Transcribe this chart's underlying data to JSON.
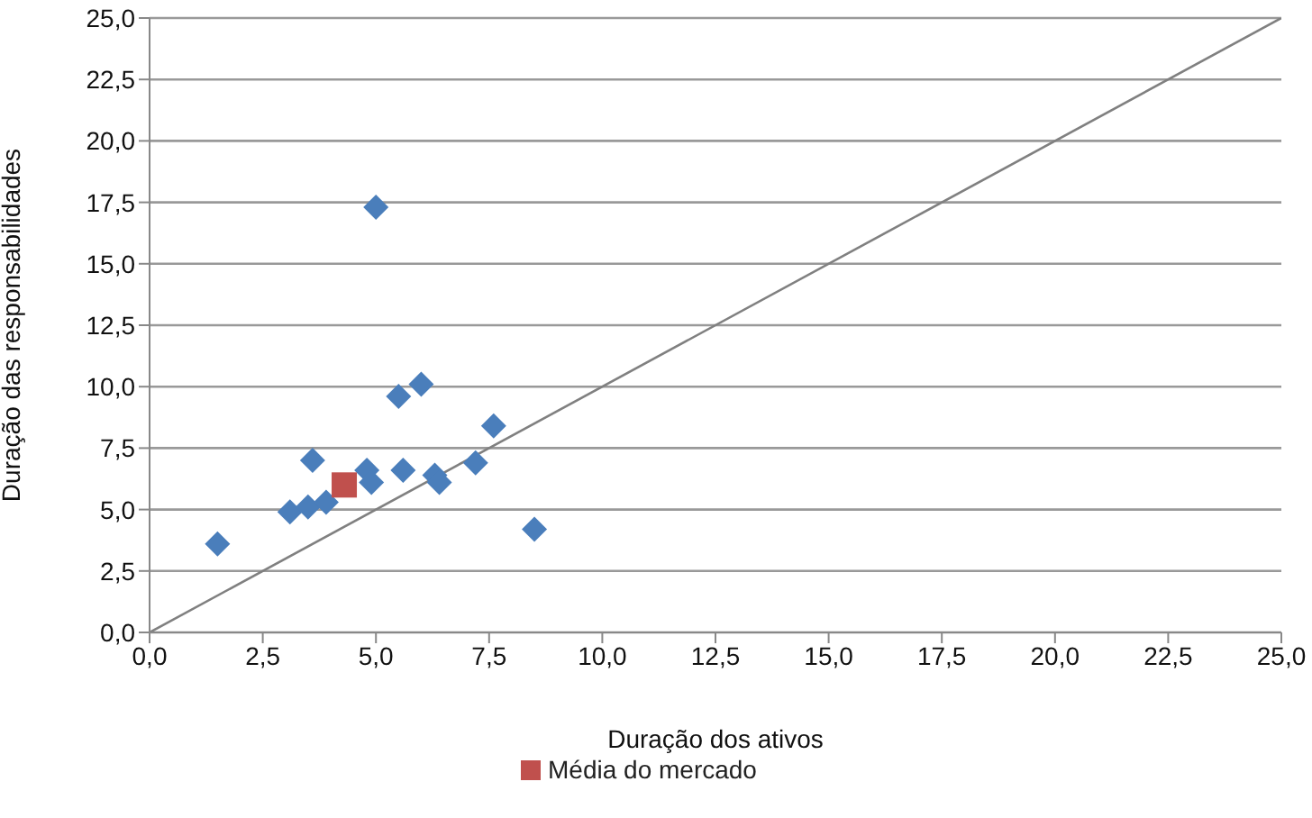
{
  "chart_data": {
    "type": "scatter",
    "xlabel": "Duração dos ativos",
    "ylabel": "Duração das responsabilidades",
    "xlim": [
      0,
      25
    ],
    "ylim": [
      0,
      25
    ],
    "xticks": [
      {
        "value": 0,
        "label": "0,0"
      },
      {
        "value": 2.5,
        "label": "2,5"
      },
      {
        "value": 5,
        "label": "5,0"
      },
      {
        "value": 7.5,
        "label": "7,5"
      },
      {
        "value": 10,
        "label": "10,0"
      },
      {
        "value": 12.5,
        "label": "12,5"
      },
      {
        "value": 15,
        "label": "15,0"
      },
      {
        "value": 17.5,
        "label": "17,5"
      },
      {
        "value": 20,
        "label": "20,0"
      },
      {
        "value": 22.5,
        "label": "22,5"
      },
      {
        "value": 25,
        "label": "25,0"
      }
    ],
    "yticks": [
      {
        "value": 0,
        "label": "0,0"
      },
      {
        "value": 2.5,
        "label": "2,5"
      },
      {
        "value": 5,
        "label": "5,0"
      },
      {
        "value": 7.5,
        "label": "7,5"
      },
      {
        "value": 10,
        "label": "10,0"
      },
      {
        "value": 12.5,
        "label": "12,5"
      },
      {
        "value": 15,
        "label": "15,0"
      },
      {
        "value": 17.5,
        "label": "17,5"
      },
      {
        "value": 20,
        "label": "20,0"
      },
      {
        "value": 22.5,
        "label": "22,5"
      },
      {
        "value": 25,
        "label": "25,0"
      }
    ],
    "grid": "y",
    "legend": "bottom",
    "series": [
      {
        "type": "line",
        "color": "#808080",
        "x": [
          0,
          25
        ],
        "values": [
          0,
          25
        ],
        "marker": "none"
      },
      {
        "color": "#4a7ebb",
        "marker": "diamond",
        "x": [
          1.5,
          3.1,
          3.5,
          3.9,
          3.6,
          4.8,
          4.9,
          5.0,
          5.5,
          6.0,
          5.6,
          6.3,
          6.4,
          7.2,
          7.6,
          8.5
        ],
        "values": [
          3.6,
          4.9,
          5.1,
          5.3,
          7.0,
          6.6,
          6.1,
          17.3,
          9.6,
          10.1,
          6.6,
          6.4,
          6.1,
          6.9,
          8.4,
          4.2
        ]
      },
      {
        "name": "Média do mercado",
        "color": "#c0504d",
        "marker": "square",
        "x": [
          4.3
        ],
        "values": [
          6.0
        ]
      }
    ]
  }
}
